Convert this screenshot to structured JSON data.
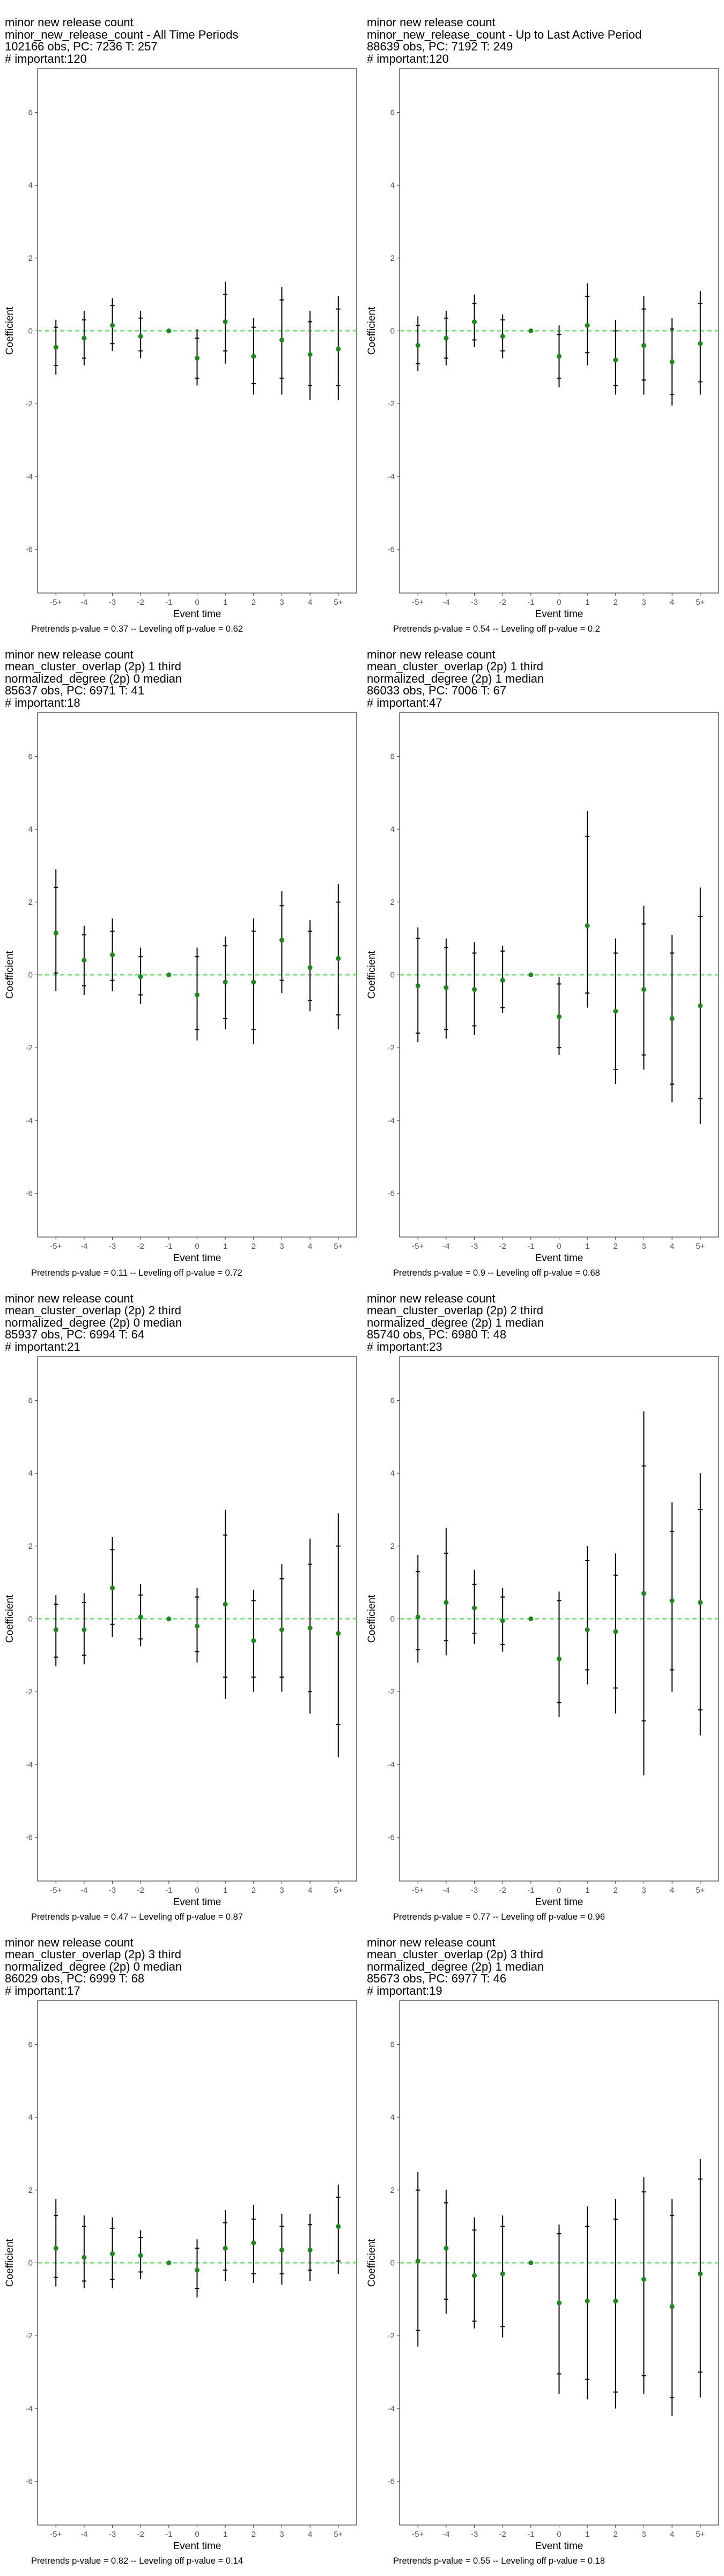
{
  "layout": {
    "columns": 2,
    "rows": 4
  },
  "colors": {
    "zero_line": "#33dd33",
    "estimate_point": "#1a8a1a",
    "error_bar": "#000000",
    "frame": "#333333",
    "tick_text": "#555555"
  },
  "chart_data": [
    {
      "type": "scatter",
      "title_lines": [
        "minor new release count",
        "minor_new_release_count - All Time Periods",
        "102166 obs, PC: 7236 T: 257",
        "# important:120"
      ],
      "xlabel": "Event time",
      "ylabel": "Coefficient",
      "categories": [
        "-5+",
        "-4",
        "-3",
        "-2",
        "-1",
        "0",
        "1",
        "2",
        "3",
        "4",
        "5+"
      ],
      "ylim": [
        -7.2,
        7.2
      ],
      "yticks": [
        -6,
        -4,
        -2,
        0,
        2,
        4,
        6
      ],
      "reference_line": {
        "y": 0,
        "style": "dashed",
        "color": "#33dd33"
      },
      "series": [
        {
          "estimate": [
            -0.45,
            -0.2,
            0.15,
            -0.15,
            0,
            -0.75,
            0.25,
            -0.7,
            -0.25,
            -0.65,
            -0.5
          ],
          "ci90_low": [
            -0.95,
            -0.75,
            -0.35,
            -0.55,
            0,
            -1.3,
            -0.55,
            -1.45,
            -1.3,
            -1.5,
            -1.5
          ],
          "ci90_high": [
            0.1,
            0.3,
            0.7,
            0.35,
            0,
            -0.2,
            1.0,
            0.1,
            0.85,
            0.25,
            0.6
          ],
          "ci95_low": [
            -1.2,
            -0.95,
            -0.55,
            -0.75,
            0,
            -1.5,
            -0.9,
            -1.75,
            -1.75,
            -1.9,
            -1.9
          ],
          "ci95_high": [
            0.3,
            0.55,
            0.9,
            0.55,
            0,
            0.05,
            1.35,
            0.35,
            1.2,
            0.55,
            0.95
          ]
        }
      ],
      "footer": "Pretrends p-value = 0.37 -- Leveling off p-value = 0.62"
    },
    {
      "type": "scatter",
      "title_lines": [
        "minor new release count",
        "minor_new_release_count - Up to Last Active Period",
        "88639 obs, PC: 7192 T: 249",
        "# important:120"
      ],
      "xlabel": "Event time",
      "ylabel": "Coefficient",
      "categories": [
        "-5+",
        "-4",
        "-3",
        "-2",
        "-1",
        "0",
        "1",
        "2",
        "3",
        "4",
        "5+"
      ],
      "ylim": [
        -7.2,
        7.2
      ],
      "yticks": [
        -6,
        -4,
        -2,
        0,
        2,
        4,
        6
      ],
      "reference_line": {
        "y": 0,
        "style": "dashed",
        "color": "#33dd33"
      },
      "series": [
        {
          "estimate": [
            -0.4,
            -0.2,
            0.25,
            -0.15,
            0,
            -0.7,
            0.15,
            -0.8,
            -0.4,
            -0.85,
            -0.35
          ],
          "ci90_low": [
            -0.9,
            -0.75,
            -0.25,
            -0.55,
            0,
            -1.3,
            -0.6,
            -1.5,
            -1.35,
            -1.75,
            -1.4
          ],
          "ci90_high": [
            0.15,
            0.35,
            0.75,
            0.3,
            0,
            -0.1,
            0.95,
            0,
            0.6,
            0.05,
            0.75
          ],
          "ci95_low": [
            -1.1,
            -0.95,
            -0.45,
            -0.75,
            0,
            -1.55,
            -0.95,
            -1.75,
            -1.75,
            -2.05,
            -1.75
          ],
          "ci95_high": [
            0.4,
            0.55,
            1.0,
            0.45,
            0,
            0.15,
            1.3,
            0.3,
            0.95,
            0.35,
            1.1
          ]
        }
      ],
      "footer": "Pretrends p-value = 0.54 -- Leveling off p-value = 0.2"
    },
    {
      "type": "scatter",
      "title_lines": [
        "minor new release count",
        "mean_cluster_overlap (2p) 1 third",
        "normalized_degree (2p) 0 median",
        "85637 obs, PC: 6971 T: 41",
        "# important:18"
      ],
      "xlabel": "Event time",
      "ylabel": "Coefficient",
      "categories": [
        "-5+",
        "-4",
        "-3",
        "-2",
        "-1",
        "0",
        "1",
        "2",
        "3",
        "4",
        "5+"
      ],
      "ylim": [
        -7.2,
        7.2
      ],
      "yticks": [
        -6,
        -4,
        -2,
        0,
        2,
        4,
        6
      ],
      "reference_line": {
        "y": 0,
        "style": "dashed",
        "color": "#33dd33"
      },
      "series": [
        {
          "estimate": [
            1.15,
            0.4,
            0.55,
            -0.05,
            0,
            -0.55,
            -0.2,
            -0.2,
            0.95,
            0.2,
            0.45
          ],
          "ci90_low": [
            0.05,
            -0.3,
            -0.15,
            -0.55,
            0,
            -1.5,
            -1.2,
            -1.5,
            -0.15,
            -0.7,
            -1.1
          ],
          "ci90_high": [
            2.4,
            1.1,
            1.2,
            0.5,
            0,
            0.5,
            0.8,
            1.2,
            1.9,
            1.2,
            2.0
          ],
          "ci95_low": [
            -0.45,
            -0.55,
            -0.45,
            -0.8,
            0,
            -1.8,
            -1.5,
            -1.9,
            -0.5,
            -1.0,
            -1.5
          ],
          "ci95_high": [
            2.9,
            1.35,
            1.55,
            0.75,
            0,
            0.75,
            1.05,
            1.55,
            2.3,
            1.5,
            2.5
          ]
        }
      ],
      "footer": "Pretrends p-value = 0.11 -- Leveling off p-value = 0.72"
    },
    {
      "type": "scatter",
      "title_lines": [
        "minor new release count",
        "mean_cluster_overlap (2p) 1 third",
        "normalized_degree (2p) 1 median",
        "86033 obs, PC: 7006 T: 67",
        "# important:47"
      ],
      "xlabel": "Event time",
      "ylabel": "Coefficient",
      "categories": [
        "-5+",
        "-4",
        "-3",
        "-2",
        "-1",
        "0",
        "1",
        "2",
        "3",
        "4",
        "5+"
      ],
      "ylim": [
        -7.2,
        7.2
      ],
      "yticks": [
        -6,
        -4,
        -2,
        0,
        2,
        4,
        6
      ],
      "reference_line": {
        "y": 0,
        "style": "dashed",
        "color": "#33dd33"
      },
      "series": [
        {
          "estimate": [
            -0.3,
            -0.35,
            -0.4,
            -0.15,
            0,
            -1.15,
            1.35,
            -1.0,
            -0.4,
            -1.2,
            -0.85
          ],
          "ci90_low": [
            -1.6,
            -1.5,
            -1.4,
            -0.9,
            0,
            -2.0,
            -0.5,
            -2.6,
            -2.2,
            -3.0,
            -3.4
          ],
          "ci90_high": [
            1.0,
            0.75,
            0.6,
            0.65,
            0,
            -0.25,
            3.8,
            0.6,
            1.4,
            0.6,
            1.6
          ],
          "ci95_low": [
            -1.85,
            -1.75,
            -1.65,
            -1.05,
            0,
            -2.2,
            -0.9,
            -3.0,
            -2.6,
            -3.5,
            -4.1
          ],
          "ci95_high": [
            1.3,
            1.0,
            0.9,
            0.8,
            0,
            -0.05,
            4.5,
            1.0,
            1.9,
            1.1,
            2.4
          ]
        }
      ],
      "footer": "Pretrends p-value = 0.9 -- Leveling off p-value = 0.68"
    },
    {
      "type": "scatter",
      "title_lines": [
        "minor new release count",
        "mean_cluster_overlap (2p) 2 third",
        "normalized_degree (2p) 0 median",
        "85937 obs, PC: 6994 T: 64",
        "# important:21"
      ],
      "xlabel": "Event time",
      "ylabel": "Coefficient",
      "categories": [
        "-5+",
        "-4",
        "-3",
        "-2",
        "-1",
        "0",
        "1",
        "2",
        "3",
        "4",
        "5+"
      ],
      "ylim": [
        -7.2,
        7.2
      ],
      "yticks": [
        -6,
        -4,
        -2,
        0,
        2,
        4,
        6
      ],
      "reference_line": {
        "y": 0,
        "style": "dashed",
        "color": "#33dd33"
      },
      "series": [
        {
          "estimate": [
            -0.3,
            -0.3,
            0.85,
            0.05,
            0,
            -0.2,
            0.4,
            -0.6,
            -0.3,
            -0.25,
            -0.4
          ],
          "ci90_low": [
            -1.05,
            -1.0,
            -0.15,
            -0.55,
            0,
            -0.9,
            -1.6,
            -1.6,
            -1.6,
            -2.0,
            -2.9
          ],
          "ci90_high": [
            0.4,
            0.45,
            1.9,
            0.65,
            0,
            0.6,
            2.3,
            0.5,
            1.1,
            1.5,
            2.0
          ],
          "ci95_low": [
            -1.3,
            -1.25,
            -0.5,
            -0.75,
            0,
            -1.2,
            -2.2,
            -2.0,
            -2.0,
            -2.6,
            -3.8
          ],
          "ci95_high": [
            0.65,
            0.7,
            2.25,
            0.95,
            0,
            0.85,
            3.0,
            0.8,
            1.5,
            2.2,
            2.9
          ]
        }
      ],
      "footer": "Pretrends p-value = 0.47 -- Leveling off p-value = 0.87"
    },
    {
      "type": "scatter",
      "title_lines": [
        "minor new release count",
        "mean_cluster_overlap (2p) 2 third",
        "normalized_degree (2p) 1 median",
        "85740 obs, PC: 6980 T: 48",
        "# important:23"
      ],
      "xlabel": "Event time",
      "ylabel": "Coefficient",
      "categories": [
        "-5+",
        "-4",
        "-3",
        "-2",
        "-1",
        "0",
        "1",
        "2",
        "3",
        "4",
        "5+"
      ],
      "ylim": [
        -7.2,
        7.2
      ],
      "yticks": [
        -6,
        -4,
        -2,
        0,
        2,
        4,
        6
      ],
      "reference_line": {
        "y": 0,
        "style": "dashed",
        "color": "#33dd33"
      },
      "series": [
        {
          "estimate": [
            0.05,
            0.45,
            0.3,
            -0.05,
            0,
            -1.1,
            -0.3,
            -0.35,
            0.7,
            0.5,
            0.45
          ],
          "ci90_low": [
            -0.85,
            -0.6,
            -0.4,
            -0.7,
            0,
            -2.3,
            -1.4,
            -1.9,
            -2.8,
            -1.4,
            -2.5
          ],
          "ci90_high": [
            1.3,
            1.8,
            0.95,
            0.6,
            0,
            0.5,
            1.6,
            1.2,
            4.2,
            2.4,
            3.0
          ],
          "ci95_low": [
            -1.2,
            -1.0,
            -0.7,
            -0.9,
            0,
            -2.7,
            -1.8,
            -2.6,
            -4.3,
            -2.0,
            -3.2
          ],
          "ci95_high": [
            1.75,
            2.5,
            1.35,
            0.85,
            0,
            0.75,
            2.0,
            1.8,
            5.7,
            3.2,
            4.0
          ]
        }
      ],
      "footer": "Pretrends p-value = 0.77 -- Leveling off p-value = 0.96"
    },
    {
      "type": "scatter",
      "title_lines": [
        "minor new release count",
        "mean_cluster_overlap (2p) 3 third",
        "normalized_degree (2p) 0 median",
        "86029 obs, PC: 6999 T: 68",
        "# important:17"
      ],
      "xlabel": "Event time",
      "ylabel": "Coefficient",
      "categories": [
        "-5+",
        "-4",
        "-3",
        "-2",
        "-1",
        "0",
        "1",
        "2",
        "3",
        "4",
        "5+"
      ],
      "ylim": [
        -7.2,
        7.2
      ],
      "yticks": [
        -6,
        -4,
        -2,
        0,
        2,
        4,
        6
      ],
      "reference_line": {
        "y": 0,
        "style": "dashed",
        "color": "#33dd33"
      },
      "series": [
        {
          "estimate": [
            0.4,
            0.15,
            0.25,
            0.2,
            0,
            -0.2,
            0.4,
            0.55,
            0.35,
            0.35,
            1.0
          ],
          "ci90_low": [
            -0.4,
            -0.5,
            -0.45,
            -0.25,
            0,
            -0.7,
            -0.2,
            -0.3,
            -0.3,
            -0.2,
            0.05
          ],
          "ci90_high": [
            1.3,
            1.0,
            0.95,
            0.7,
            0,
            0.4,
            1.1,
            1.2,
            1.0,
            1.05,
            1.8
          ],
          "ci95_low": [
            -0.65,
            -0.7,
            -0.7,
            -0.45,
            0,
            -0.95,
            -0.5,
            -0.55,
            -0.6,
            -0.5,
            -0.3
          ],
          "ci95_high": [
            1.75,
            1.3,
            1.25,
            0.9,
            0,
            0.65,
            1.45,
            1.6,
            1.35,
            1.35,
            2.15
          ]
        }
      ],
      "footer": "Pretrends p-value = 0.82 -- Leveling off p-value = 0.14"
    },
    {
      "type": "scatter",
      "title_lines": [
        "minor new release count",
        "mean_cluster_overlap (2p) 3 third",
        "normalized_degree (2p) 1 median",
        "85673 obs, PC: 6977 T: 46",
        "# important:19"
      ],
      "xlabel": "Event time",
      "ylabel": "Coefficient",
      "categories": [
        "-5+",
        "-4",
        "-3",
        "-2",
        "-1",
        "0",
        "1",
        "2",
        "3",
        "4",
        "5+"
      ],
      "ylim": [
        -7.2,
        7.2
      ],
      "yticks": [
        -6,
        -4,
        -2,
        0,
        2,
        4,
        6
      ],
      "reference_line": {
        "y": 0,
        "style": "dashed",
        "color": "#33dd33"
      },
      "series": [
        {
          "estimate": [
            0.05,
            0.4,
            -0.35,
            -0.3,
            0,
            -1.1,
            -1.05,
            -1.05,
            -0.45,
            -1.2,
            -0.3
          ],
          "ci90_low": [
            -1.85,
            -1.0,
            -1.6,
            -1.75,
            0,
            -3.05,
            -3.2,
            -3.55,
            -3.1,
            -3.7,
            -3.0
          ],
          "ci90_high": [
            2.0,
            1.65,
            0.9,
            1.0,
            0,
            0.8,
            1.0,
            1.2,
            1.95,
            1.3,
            2.3
          ],
          "ci95_low": [
            -2.3,
            -1.4,
            -1.8,
            -2.05,
            0,
            -3.6,
            -3.75,
            -4.0,
            -3.6,
            -4.2,
            -3.7
          ],
          "ci95_high": [
            2.5,
            2.0,
            1.25,
            1.3,
            0,
            1.05,
            1.55,
            1.75,
            2.35,
            1.75,
            2.85
          ]
        }
      ],
      "footer": "Pretrends p-value = 0.55 -- Leveling off p-value = 0.18"
    }
  ]
}
